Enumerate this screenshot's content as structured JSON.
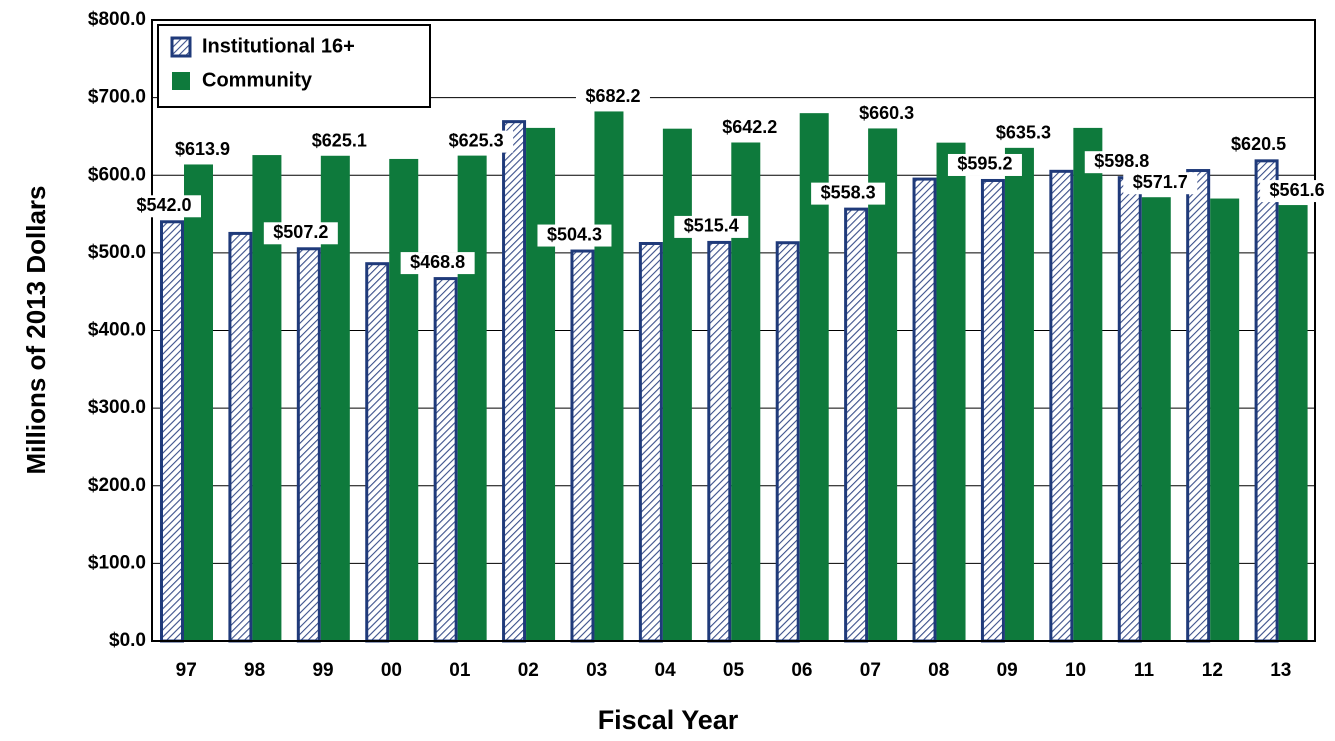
{
  "chart_data": {
    "type": "bar",
    "x_label": "Fiscal Year",
    "y_label": "Millions of 2013 Dollars",
    "categories": [
      "97",
      "98",
      "99",
      "00",
      "01",
      "02",
      "03",
      "04",
      "05",
      "06",
      "07",
      "08",
      "09",
      "10",
      "11",
      "12",
      "13"
    ],
    "series": [
      {
        "name": "Institutional 16+",
        "color": "#1f3a7a",
        "values": [
          542.0,
          527,
          507.2,
          488,
          468.8,
          671,
          504.3,
          514,
          515.4,
          515,
          558.3,
          597,
          595.2,
          607,
          598.8,
          608,
          620.5
        ],
        "value_labels": [
          "$542.0",
          null,
          "$507.2",
          null,
          "$468.8",
          null,
          "$504.3",
          null,
          "$515.4",
          null,
          "$558.3",
          null,
          "$595.2",
          null,
          "$598.8",
          null,
          "$620.5"
        ]
      },
      {
        "name": "Community",
        "color": "#0e7a3c",
        "values": [
          613.9,
          626,
          625.1,
          621,
          625.3,
          661,
          682.2,
          660,
          642.2,
          680,
          660.3,
          642,
          635.3,
          661,
          571.7,
          570,
          561.6
        ],
        "value_labels": [
          "$613.9",
          null,
          "$625.1",
          null,
          "$625.3",
          null,
          "$682.2",
          null,
          "$642.2",
          null,
          "$660.3",
          null,
          "$635.3",
          null,
          "$571.7",
          null,
          "$561.6"
        ]
      }
    ],
    "ylim": [
      0,
      800
    ],
    "yticks": [
      {
        "value": 0,
        "label": "$0.0"
      },
      {
        "value": 100,
        "label": "$100.0"
      },
      {
        "value": 200,
        "label": "$200.0"
      },
      {
        "value": 300,
        "label": "$300.0"
      },
      {
        "value": 400,
        "label": "$400.0"
      },
      {
        "value": 500,
        "label": "$500.0"
      },
      {
        "value": 600,
        "label": "$600.0"
      },
      {
        "value": 700,
        "label": "$700.0"
      },
      {
        "value": 800,
        "label": "$800.0"
      }
    ],
    "grid": true,
    "legend": "upper left"
  }
}
